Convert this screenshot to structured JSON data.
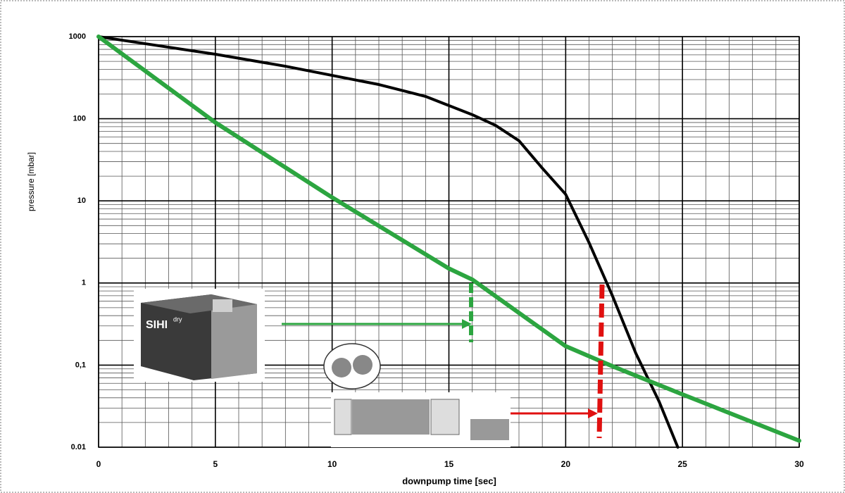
{
  "chart_data": {
    "type": "line",
    "y_label": "pressure [mbar]",
    "x_label": "downpump time [sec]",
    "log_y": true,
    "grid": true,
    "xlim": [
      0,
      30
    ],
    "xticks": [
      0,
      5,
      10,
      15,
      20,
      25,
      30
    ],
    "ylim": [
      0.01,
      1000
    ],
    "yticks": [
      1000,
      100,
      10,
      1,
      {
        "value": 0.1,
        "label": "0,1"
      },
      0.01
    ],
    "series": [
      {
        "color": "#000000",
        "x": [
          0,
          2,
          5,
          8,
          10,
          12,
          14,
          16,
          17,
          18,
          19,
          20,
          21,
          22,
          23,
          24,
          24.8
        ],
        "values": [
          1000,
          820,
          610,
          436,
          337,
          261,
          187,
          112,
          83,
          54,
          25,
          12,
          3.1,
          0.7,
          0.14,
          0.036,
          0.01
        ]
      },
      {
        "color": "#2ca540",
        "x": [
          0,
          5,
          10,
          15,
          16,
          20,
          22,
          25,
          30
        ],
        "values": [
          1000,
          90,
          11,
          1.5,
          1.1,
          0.17,
          0.097,
          0.044,
          0.012
        ]
      }
    ],
    "annotations": [
      "SIHI",
      "dry"
    ]
  }
}
